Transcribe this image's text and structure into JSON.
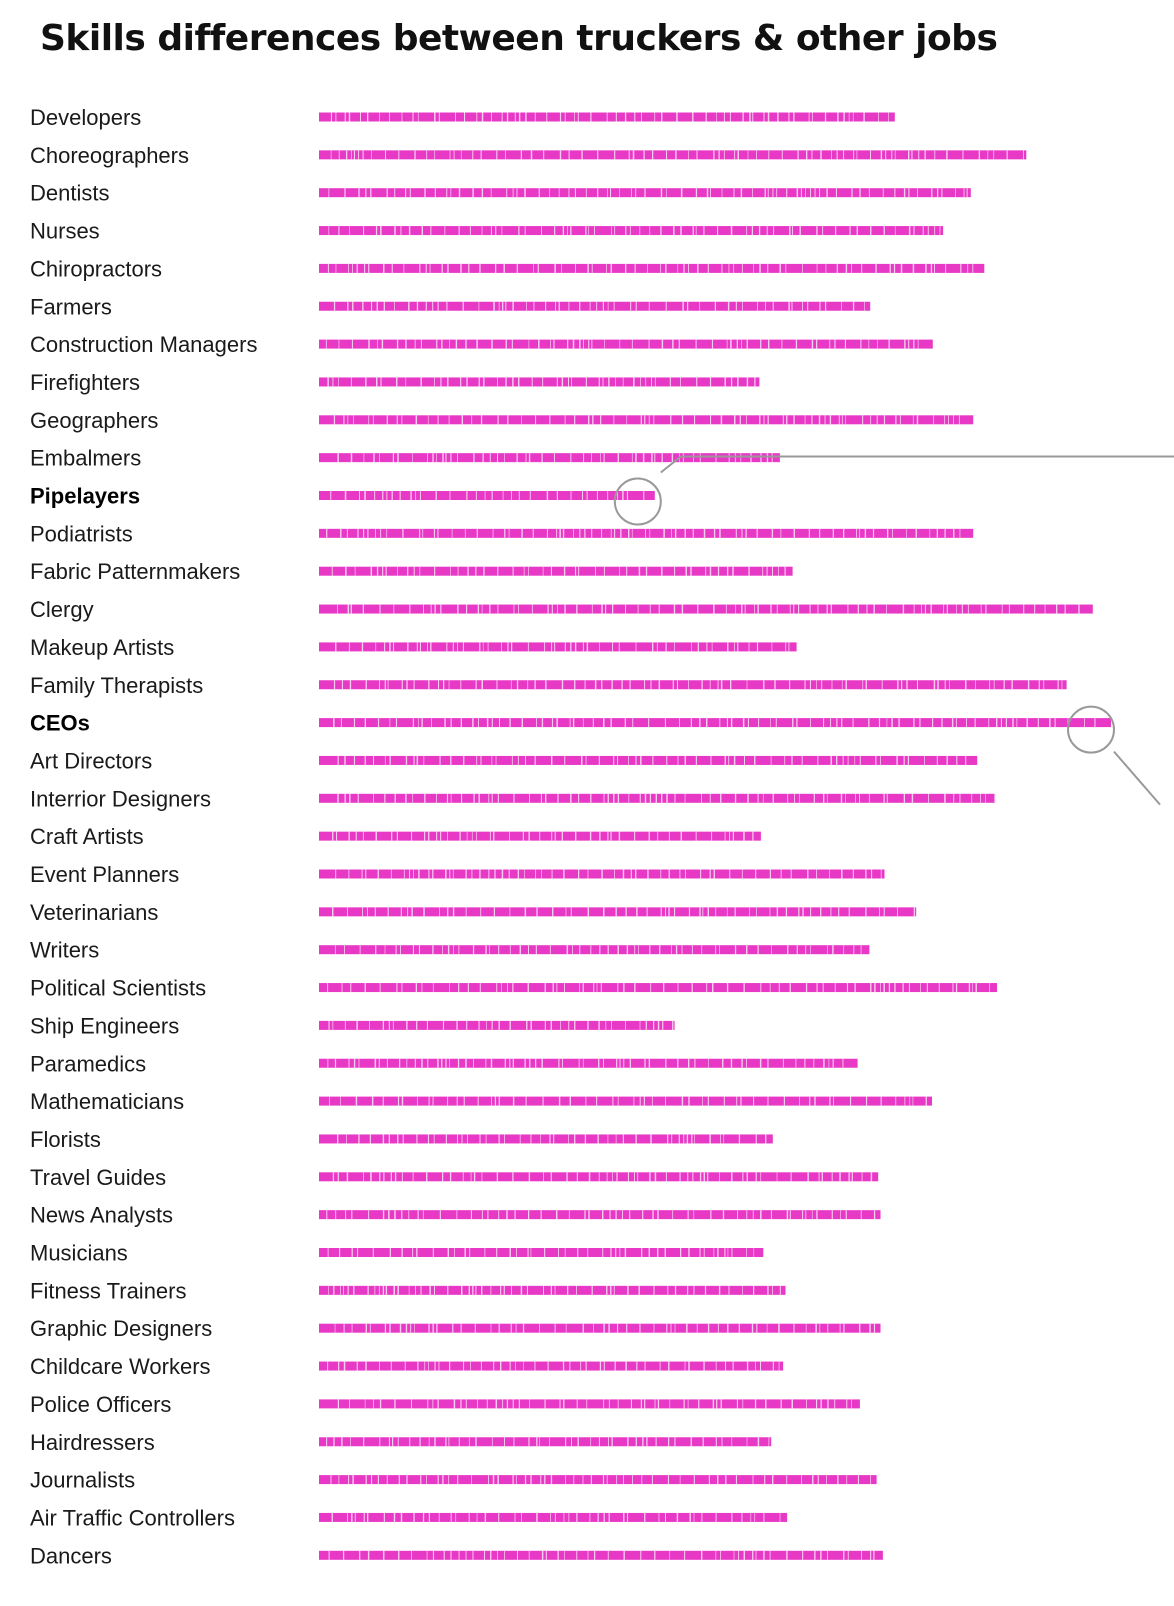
{
  "chart_data": {
    "type": "bar",
    "title": "Skills differences between truckers & other jobs",
    "bar_color": "#e838c6",
    "annotation_color": "#999999",
    "highlighted": [
      "Pipelayers",
      "CEOs"
    ],
    "categories": [
      "Developers",
      "Choreographers",
      "Dentists",
      "Nurses",
      "Chiropractors",
      "Farmers",
      "Construction Managers",
      "Firefighters",
      "Geographers",
      "Embalmers",
      "Pipelayers",
      "Podiatrists",
      "Fabric Patternmakers",
      "Clergy",
      "Makeup Artists",
      "Family Therapists",
      "CEOs",
      "Art Directors",
      "Interrior Designers",
      "Craft Artists",
      "Event Planners",
      "Veterinarians",
      "Writers",
      "Political Scientists",
      "Ship Engineers",
      "Paramedics",
      "Mathematicians",
      "Florists",
      "Travel Guides",
      "News Analysts",
      "Musicians",
      "Fitness Trainers",
      "Graphic Designers",
      "Childcare Workers",
      "Police Officers",
      "Hairdressers",
      "Journalists",
      "Air Traffic Controllers",
      "Dancers"
    ],
    "values": [
      0.727,
      0.893,
      0.823,
      0.788,
      0.84,
      0.696,
      0.775,
      0.556,
      0.826,
      0.582,
      0.424,
      0.826,
      0.598,
      0.977,
      0.603,
      0.944,
      1.0,
      0.831,
      0.854,
      0.558,
      0.714,
      0.754,
      0.695,
      0.856,
      0.449,
      0.68,
      0.774,
      0.573,
      0.706,
      0.709,
      0.561,
      0.589,
      0.709,
      0.586,
      0.683,
      0.571,
      0.704,
      0.591,
      0.712
    ],
    "xlim": [
      0,
      1
    ]
  }
}
